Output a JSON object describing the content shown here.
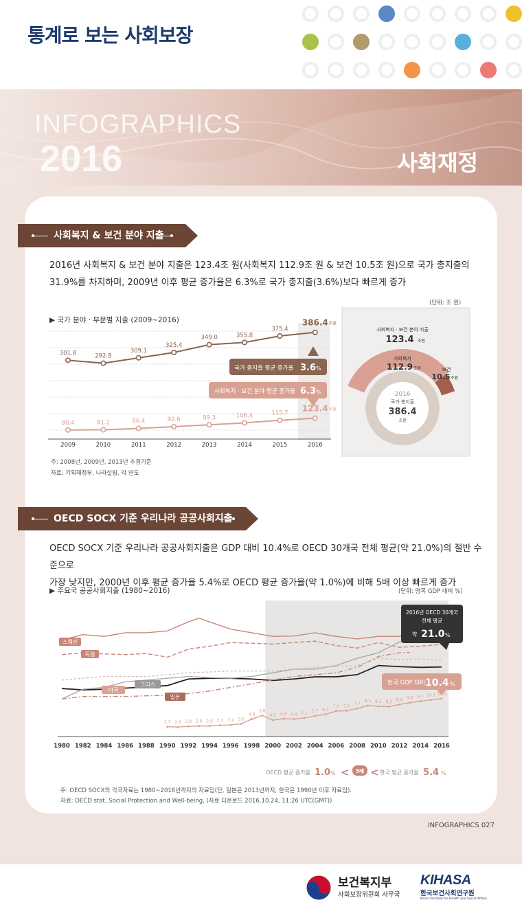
{
  "header": {
    "title": "통계로 보는 사회보장"
  },
  "banner": {
    "line1": "INFOGRAPHICS",
    "line2": "2016",
    "category": "사회재정"
  },
  "colors": {
    "navy": "#1d3a6b",
    "brown": "#6b4536",
    "pink": "#d9a193",
    "gray_bg": "#e8e6e4"
  },
  "section1": {
    "heading": "사회복지 & 보건 분야 지출",
    "description_line1": "2016년 사회복지 & 보건 분야 지출은 123.4조 원(사회복지 112.9조 원 & 보건 10.5조 원)으로 국가 총지출의",
    "description_line2": "31.9%를 차지하며, 2009년 이후 평균 증가율은 6.3%로 국가 총지출(3.6%)보다 빠르게 증가",
    "unit": "(단위: 조 원)",
    "chart_title": "▶ 국가 분야 · 부문별 지출 (2009~2016)",
    "note1": "주:  2008년, 2009년, 2013년 추경기준",
    "note2": "자료:  기획재정부, 나라살림, 각 연도",
    "callout_total_label": "국가 총지출 평균 증가율",
    "callout_total_value": "3.6",
    "callout_total_unit": "%",
    "callout_welfare_label": "사회복지 · 보건 분야 평균 증가율",
    "callout_welfare_value": "6.3",
    "callout_welfare_unit": "%",
    "value_unit": "조원",
    "donut": {
      "top_label": "사회복지 · 보건 분야 지출",
      "top_value": "123.4",
      "unit": "조원",
      "welfare_label": "사회복지",
      "welfare_value": "112.9",
      "health_label": "보건",
      "health_value": "10.5",
      "center_year": "2016",
      "center_label": "국가 총지출",
      "center_value": "386.4"
    }
  },
  "section2": {
    "heading": "OECD SOCX 기준 우리나라 공공사회지출",
    "description_line1": "OECD SOCX 기준 우리나라 공공사회지출은 GDP 대비 10.4%로 OECD 30개국 전체 평균(약 21.0%)의 절반 수준으로",
    "description_line2": "가장 낮지만, 2000년 이후 평균 증가율 5.4%로 OECD 평균 증가율(약 1.0%)에 비해 5배 이상 빠르게 증가",
    "chart_title": "▶ 주요국 공공사회지출 (1980~2016)",
    "unit": "(단위: 명목 GDP 대비 %)",
    "oecd_box_line1": "2016년 OECD 30개국",
    "oecd_box_line2": "전체 평균",
    "oecd_box_prefix": "약",
    "oecd_box_value": "21.0",
    "oecd_box_unit": "%",
    "korea_label": "한국 GDP 대비",
    "korea_value": "10.4",
    "korea_unit": "%",
    "oecd_growth_label": "OECD 평균 증가율",
    "oecd_growth_value": "1.0",
    "times_label": "5배",
    "korea_growth_label": "한국 평균 증가율",
    "korea_growth_value": "5.4",
    "percent": "%",
    "note1": "주:  OECD SOCX의 각국자료는 1980~2016년까지의 자료임(단, 일본은 2013년까지, 한국은 1990년 이후 자료임).",
    "note2": "자료:  OECD stat, Social Protection and Well-being, (자료 다운로드 2016.10.24, 11:26 UTC(GMT))"
  },
  "footer": {
    "page_code": "INFOGRAPHICS  027",
    "ministry_name": "보건복지부",
    "ministry_sub": "사회보장위원회 사무국",
    "kihasa_name": "KIHASA",
    "kihasa_sub": "한국보건사회연구원",
    "kihasa_en": "Korea Institute for Health and Social Affairs"
  },
  "chart_data": [
    {
      "type": "line",
      "title": "국가 분야 · 부문별 지출 (2009~2016)",
      "x": [
        "2009",
        "2010",
        "2011",
        "2012",
        "2013",
        "2014",
        "2015",
        "2016"
      ],
      "series": [
        {
          "name": "국가 총지출",
          "values": [
            301.8,
            292.8,
            309.1,
            325.4,
            349.0,
            355.8,
            375.4,
            386.4
          ],
          "labels": [
            "301.8",
            "292.8",
            "309.1",
            "325.4",
            "349.0",
            "355.8",
            "375.4",
            "386.4"
          ],
          "color": "#8a6552"
        },
        {
          "name": "사회복지 · 보건 분야",
          "values": [
            80.4,
            81.2,
            86.4,
            92.6,
            99.3,
            106.4,
            115.7,
            123.4
          ],
          "labels": [
            "80.4",
            "81.2",
            "86.4",
            "92.6",
            "99.3",
            "106.4",
            "115.7",
            "123.4"
          ],
          "color": "#d9a193"
        }
      ],
      "unit": "조 원"
    },
    {
      "type": "pie",
      "title": "사회복지 · 보건 분야 지출",
      "categories": [
        "사회복지",
        "보건"
      ],
      "values": [
        112.9,
        10.5
      ],
      "total": 386.4
    },
    {
      "type": "line",
      "title": "주요국 공공사회지출 (1980~2016)",
      "unit": "명목 GDP 대비 %",
      "xlim": [
        1980,
        2016
      ],
      "x_ticks": [
        "1980",
        "1982",
        "1984",
        "1986",
        "1988",
        "1990",
        "1992",
        "1994",
        "1996",
        "1998",
        "2000",
        "2002",
        "2004",
        "2006",
        "2008",
        "2010",
        "2012",
        "2014",
        "2016"
      ],
      "ylim": [
        0,
        35
      ],
      "series": [
        {
          "name": "스웨덴",
          "color": "#c98676",
          "style": "solid",
          "x": [
            1980,
            1982,
            1984,
            1986,
            1988,
            1990,
            1992,
            1993,
            1994,
            1996,
            1998,
            2000,
            2002,
            2004,
            2006,
            2008,
            2010,
            2012,
            2014,
            2016
          ],
          "values": [
            26.5,
            28.0,
            27.5,
            28.5,
            28.5,
            29.0,
            31.5,
            32.5,
            31.5,
            29.5,
            28.5,
            27.5,
            27.6,
            28.5,
            27.5,
            26.8,
            27.5,
            27.5,
            27.5,
            26.5
          ]
        },
        {
          "name": "독일",
          "color": "#c98676",
          "style": "dash",
          "x": [
            1980,
            1982,
            1984,
            1986,
            1988,
            1990,
            1992,
            1994,
            1996,
            1998,
            2000,
            2002,
            2004,
            2006,
            2008,
            2010,
            2012,
            2014,
            2016
          ],
          "values": [
            22.5,
            23.0,
            22.7,
            22.5,
            22.8,
            21.8,
            24.0,
            24.8,
            25.8,
            25.6,
            25.4,
            25.8,
            26.2,
            25.0,
            24.3,
            25.8,
            24.5,
            24.8,
            25.3
          ]
        },
        {
          "name": "미국",
          "color": "#222222",
          "style": "solid",
          "x": [
            1980,
            1982,
            1984,
            1986,
            1988,
            1990,
            1992,
            1994,
            1996,
            1998,
            2000,
            2002,
            2004,
            2006,
            2008,
            2010,
            2012,
            2014,
            2016
          ],
          "values": [
            13.2,
            12.8,
            13.0,
            13.3,
            13.6,
            14.0,
            15.8,
            16.0,
            16.0,
            15.8,
            15.4,
            15.8,
            16.4,
            16.4,
            17.0,
            19.5,
            19.2,
            19.0,
            19.1
          ]
        },
        {
          "name": "그리스",
          "color": "#aaaaaa",
          "style": "solid",
          "x": [
            1980,
            1982,
            1984,
            1986,
            1988,
            1990,
            1992,
            1994,
            1996,
            1998,
            2000,
            2002,
            2004,
            2006,
            2008,
            2010,
            2012,
            2014,
            2016
          ],
          "values": [
            10.3,
            13.0,
            13.5,
            15.0,
            15.5,
            16.0,
            16.5,
            16.2,
            16.0,
            16.5,
            17.5,
            18.5,
            18.5,
            19.5,
            21.5,
            23.0,
            26.0,
            26.0,
            27.0
          ]
        },
        {
          "name": "일본",
          "color": "#c98676",
          "style": "dashdot",
          "x": [
            1980,
            1982,
            1984,
            1986,
            1988,
            1990,
            1992,
            1994,
            1996,
            1998,
            2000,
            2002,
            2004,
            2006,
            2008,
            2010,
            2012,
            2013
          ],
          "values": [
            10.3,
            11.0,
            11.0,
            11.0,
            11.2,
            11.3,
            11.8,
            12.5,
            13.5,
            14.5,
            15.5,
            16.5,
            17.0,
            17.5,
            19.0,
            22.0,
            23.0,
            23.1
          ]
        },
        {
          "name": "OECD 평균",
          "color": "#d8b8ad",
          "style": "dot",
          "x": [
            1980,
            1984,
            1988,
            1992,
            1996,
            2000,
            2004,
            2008,
            2010,
            2012,
            2014,
            2016
          ],
          "values": [
            15.5,
            16.5,
            16.5,
            17.5,
            18.0,
            18.0,
            19.0,
            19.5,
            21.5,
            21.2,
            21.3,
            21.0
          ]
        },
        {
          "name": "한국",
          "color": "#d9a193",
          "style": "solid",
          "x": [
            1990,
            1991,
            1992,
            1993,
            1994,
            1995,
            1996,
            1997,
            1998,
            1999,
            2000,
            2001,
            2002,
            2003,
            2004,
            2005,
            2006,
            2007,
            2008,
            2009,
            2010,
            2011,
            2012,
            2013,
            2014,
            2015,
            2016
          ],
          "values": [
            2.7,
            2.6,
            2.8,
            2.9,
            2.9,
            3.1,
            3.2,
            3.5,
            4.8,
            5.8,
            4.5,
            4.9,
            4.8,
            5.1,
            5.7,
            6.1,
            7.0,
            7.1,
            7.7,
            8.5,
            8.3,
            8.2,
            8.8,
            9.3,
            9.7,
            10.1,
            10.4
          ],
          "labels": [
            "2.7",
            "2.6",
            "2.8",
            "2.9",
            "2.9",
            "3.1",
            "3.2",
            "3.5",
            "4.8",
            "5.8",
            "4.5",
            "4.9",
            "4.8",
            "5.1",
            "5.7",
            "6.1",
            "7.0",
            "7.1",
            "7.7",
            "8.5",
            "8.3",
            "8.2",
            "8.8",
            "9.3",
            "9.7",
            "10.1",
            "10.4"
          ]
        }
      ]
    }
  ]
}
